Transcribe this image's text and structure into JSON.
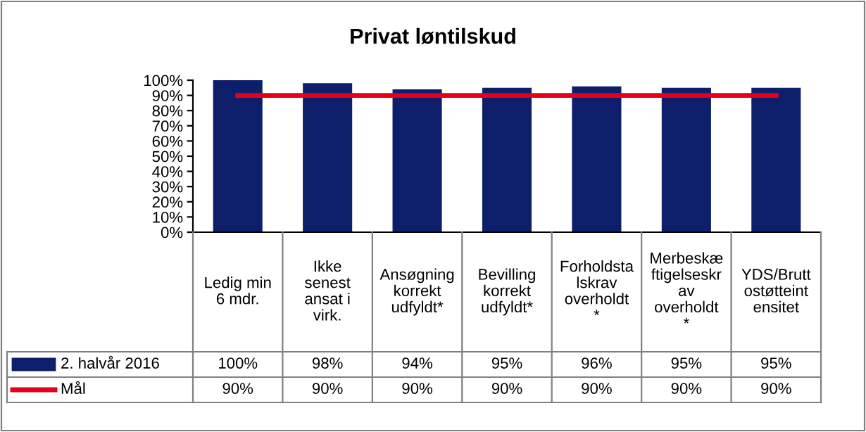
{
  "chart_data": {
    "type": "bar",
    "title": "Privat løntilskud",
    "categories": [
      "Ledig min\n6 mdr.",
      "Ikke\nsenest\nansat i\nvirk.",
      "Ansøgning\nkorrekt\nudfyldt*",
      "Bevilling\nkorrekt\nudfyldt*",
      "Forholdsta\nlskrav\noverholdt\n*",
      "Merbeskæ\nftigelseskr\nav\noverholdt\n*",
      "YDS/Brutt\nostøtteint\nensitet"
    ],
    "series": [
      {
        "name": "2. halvår 2016",
        "color": "#0d1f6b",
        "values": [
          100,
          98,
          94,
          95,
          96,
          95,
          95
        ],
        "value_labels": [
          "100%",
          "98%",
          "94%",
          "95%",
          "96%",
          "95%",
          "95%"
        ]
      },
      {
        "name": "Mål",
        "type": "line",
        "color": "#e3001b",
        "values": [
          90,
          90,
          90,
          90,
          90,
          90,
          90
        ],
        "value_labels": [
          "90%",
          "90%",
          "90%",
          "90%",
          "90%",
          "90%",
          "90%"
        ]
      }
    ],
    "ylim": [
      0,
      100
    ],
    "yticks": [
      {
        "value": 0,
        "label": "0%"
      },
      {
        "value": 10,
        "label": "10%"
      },
      {
        "value": 20,
        "label": "20%"
      },
      {
        "value": 30,
        "label": "30%"
      },
      {
        "value": 40,
        "label": "40%"
      },
      {
        "value": 50,
        "label": "50%"
      },
      {
        "value": 60,
        "label": "60%"
      },
      {
        "value": 70,
        "label": "70%"
      },
      {
        "value": 80,
        "label": "80%"
      },
      {
        "value": 90,
        "label": "90%"
      },
      {
        "value": 100,
        "label": "100%"
      }
    ],
    "legend": "bottom",
    "grid": false
  }
}
